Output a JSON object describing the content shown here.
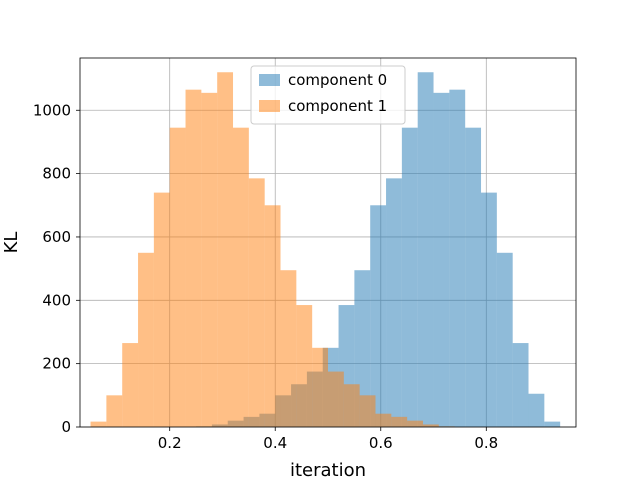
{
  "chart_data": {
    "type": "histogram",
    "title": "",
    "xlabel": "iteration",
    "ylabel": "KL",
    "xlim": [
      0.03,
      0.97
    ],
    "ylim": [
      0,
      1165
    ],
    "xticks": [
      0.2,
      0.4,
      0.6,
      0.8
    ],
    "xtick_labels": [
      "0.2",
      "0.4",
      "0.6",
      "0.8"
    ],
    "yticks": [
      0,
      200,
      400,
      600,
      800,
      1000
    ],
    "ytick_labels": [
      "0",
      "200",
      "400",
      "600",
      "800",
      "1000"
    ],
    "grid": true,
    "legend_position": "top-center",
    "series": [
      {
        "name": "component 0",
        "color": "#1f77b4",
        "alpha": 0.5,
        "bins": [
          [
            0.25,
            0.28,
            2
          ],
          [
            0.28,
            0.31,
            8
          ],
          [
            0.31,
            0.34,
            20
          ],
          [
            0.34,
            0.37,
            32
          ],
          [
            0.37,
            0.4,
            42
          ],
          [
            0.4,
            0.43,
            100
          ],
          [
            0.43,
            0.46,
            135
          ],
          [
            0.46,
            0.49,
            175
          ],
          [
            0.49,
            0.52,
            250
          ],
          [
            0.52,
            0.55,
            385
          ],
          [
            0.55,
            0.58,
            495
          ],
          [
            0.58,
            0.61,
            700
          ],
          [
            0.61,
            0.64,
            785
          ],
          [
            0.64,
            0.67,
            945
          ],
          [
            0.67,
            0.7,
            1120
          ],
          [
            0.7,
            0.73,
            1055
          ],
          [
            0.73,
            0.76,
            1065
          ],
          [
            0.76,
            0.79,
            945
          ],
          [
            0.79,
            0.82,
            740
          ],
          [
            0.82,
            0.85,
            550
          ],
          [
            0.85,
            0.88,
            265
          ],
          [
            0.88,
            0.91,
            105
          ],
          [
            0.91,
            0.94,
            17
          ]
        ]
      },
      {
        "name": "component 1",
        "color": "#ff7f0e",
        "alpha": 0.5,
        "bins": [
          [
            0.05,
            0.08,
            17
          ],
          [
            0.08,
            0.11,
            100
          ],
          [
            0.11,
            0.14,
            265
          ],
          [
            0.14,
            0.17,
            550
          ],
          [
            0.17,
            0.2,
            740
          ],
          [
            0.2,
            0.23,
            945
          ],
          [
            0.23,
            0.26,
            1065
          ],
          [
            0.26,
            0.29,
            1055
          ],
          [
            0.29,
            0.32,
            1120
          ],
          [
            0.32,
            0.35,
            945
          ],
          [
            0.35,
            0.38,
            785
          ],
          [
            0.38,
            0.41,
            700
          ],
          [
            0.41,
            0.44,
            495
          ],
          [
            0.44,
            0.47,
            385
          ],
          [
            0.47,
            0.5,
            250
          ],
          [
            0.5,
            0.53,
            175
          ],
          [
            0.53,
            0.56,
            135
          ],
          [
            0.56,
            0.59,
            100
          ],
          [
            0.59,
            0.62,
            42
          ],
          [
            0.62,
            0.65,
            32
          ],
          [
            0.65,
            0.68,
            20
          ],
          [
            0.68,
            0.71,
            8
          ],
          [
            0.71,
            0.74,
            2
          ]
        ]
      }
    ]
  }
}
